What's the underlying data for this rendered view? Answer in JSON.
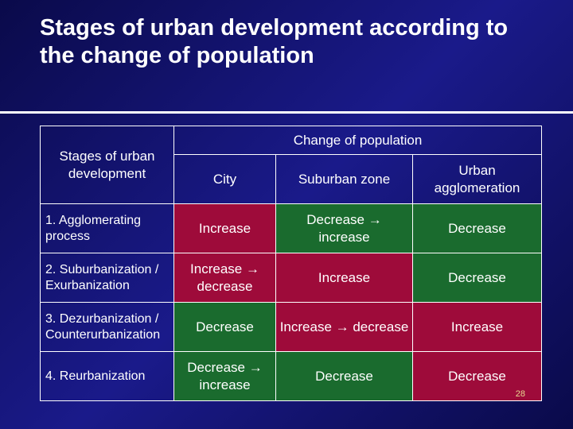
{
  "title": "Stages of urban development according to the change of population",
  "page_number": "28",
  "colors": {
    "background_gradient": [
      "#0a0a4a",
      "#1a1a8a",
      "#0a0a4a"
    ],
    "text": "#ffffff",
    "border": "#ffffff",
    "cell_red": "#9e0b3a",
    "cell_green": "#1a6b2e",
    "page_num": "#e8d890"
  },
  "table": {
    "header_stage": "Stages of urban development",
    "header_change": "Change of population",
    "sub_city": "City",
    "sub_suburban": "Suburban zone",
    "sub_agglo": "Urban agglomeration",
    "rows": [
      {
        "label": "1. Agglomerating process",
        "city": "Increase",
        "suburban": "Decrease → increase",
        "agglo": "Decrease"
      },
      {
        "label": "2. Suburbanization / Exurbanization",
        "city": "Increase → decrease",
        "suburban": "Increase",
        "agglo": "Decrease"
      },
      {
        "label": "3. Dezurbanization / Counterurbanization",
        "city": "Decrease",
        "suburban": "Increase → decrease",
        "agglo": "Increase"
      },
      {
        "label": "4. Reurbanization",
        "city": "Decrease → increase",
        "suburban": "Decrease",
        "agglo": "Decrease"
      }
    ]
  }
}
